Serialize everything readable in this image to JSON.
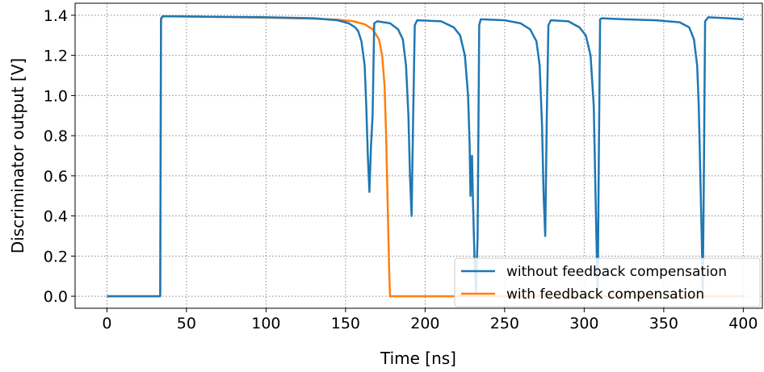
{
  "chart_data": {
    "type": "line",
    "xlabel": "Time [ns]",
    "ylabel": "Discriminator output [V]",
    "xlim": [
      -20,
      412
    ],
    "ylim": [
      -0.06,
      1.46
    ],
    "xticks": [
      0,
      50,
      100,
      150,
      200,
      250,
      300,
      350,
      400
    ],
    "yticks": [
      0.0,
      0.2,
      0.4,
      0.6,
      0.8,
      1.0,
      1.2,
      1.4
    ],
    "xtick_labels": [
      "0",
      "50",
      "100",
      "150",
      "200",
      "250",
      "300",
      "350",
      "400"
    ],
    "ytick_labels": [
      "0.0",
      "0.2",
      "0.4",
      "0.6",
      "0.8",
      "1.0",
      "1.2",
      "1.4"
    ],
    "grid": "dotted",
    "legend_position": "bottom-right",
    "series": [
      {
        "name": "without feedback compensation",
        "color": "#1f77b4",
        "x": [
          0,
          33.5,
          34,
          35,
          60,
          100,
          130,
          145,
          152,
          156,
          158,
          160,
          162,
          163,
          164,
          165,
          166,
          167,
          168,
          170,
          178,
          183,
          186,
          188,
          189.5,
          190.5,
          191.5,
          192.5,
          193.5,
          195,
          210,
          218,
          222,
          225,
          227,
          228,
          228.5,
          229,
          229.5,
          230,
          231,
          232,
          233,
          234,
          235,
          250,
          260,
          266,
          270,
          272,
          273.5,
          274.5,
          275.5,
          276.5,
          277.5,
          279,
          290,
          297,
          301,
          304,
          306,
          307,
          307.8,
          308.5,
          309.2,
          310,
          311,
          325,
          345,
          360,
          366,
          369,
          371,
          372,
          373,
          374,
          374.5,
          375,
          376,
          378,
          390,
          400
        ],
        "y": [
          0,
          0,
          1.38,
          1.395,
          1.393,
          1.39,
          1.385,
          1.375,
          1.36,
          1.34,
          1.32,
          1.27,
          1.15,
          0.95,
          0.7,
          0.52,
          0.75,
          0.9,
          1.36,
          1.37,
          1.36,
          1.33,
          1.28,
          1.15,
          0.9,
          0.6,
          0.4,
          0.9,
          1.35,
          1.375,
          1.37,
          1.34,
          1.3,
          1.2,
          1.0,
          0.75,
          0.5,
          0.62,
          0.7,
          0.5,
          0.2,
          0.02,
          0.3,
          1.35,
          1.38,
          1.375,
          1.36,
          1.33,
          1.27,
          1.15,
          0.85,
          0.5,
          0.3,
          0.9,
          1.35,
          1.375,
          1.37,
          1.34,
          1.3,
          1.2,
          0.95,
          0.55,
          0.25,
          0.02,
          0.7,
          1.38,
          1.385,
          1.38,
          1.375,
          1.365,
          1.34,
          1.28,
          1.15,
          0.95,
          0.6,
          0.25,
          0.02,
          0.4,
          1.37,
          1.39,
          1.385,
          1.38
        ]
      },
      {
        "name": "with feedback compensation",
        "color": "#ff7f0e",
        "x": [
          0,
          33.5,
          34,
          35,
          60,
          100,
          130,
          145,
          155,
          162,
          167,
          171,
          173,
          174.5,
          175.5,
          176.5,
          177.5,
          178,
          190,
          220,
          260,
          300,
          350,
          400
        ],
        "y": [
          0,
          0,
          1.385,
          1.395,
          1.393,
          1.388,
          1.383,
          1.378,
          1.37,
          1.355,
          1.33,
          1.28,
          1.2,
          1.05,
          0.8,
          0.45,
          0.1,
          0,
          0,
          0,
          0,
          0,
          0,
          0
        ]
      }
    ]
  }
}
